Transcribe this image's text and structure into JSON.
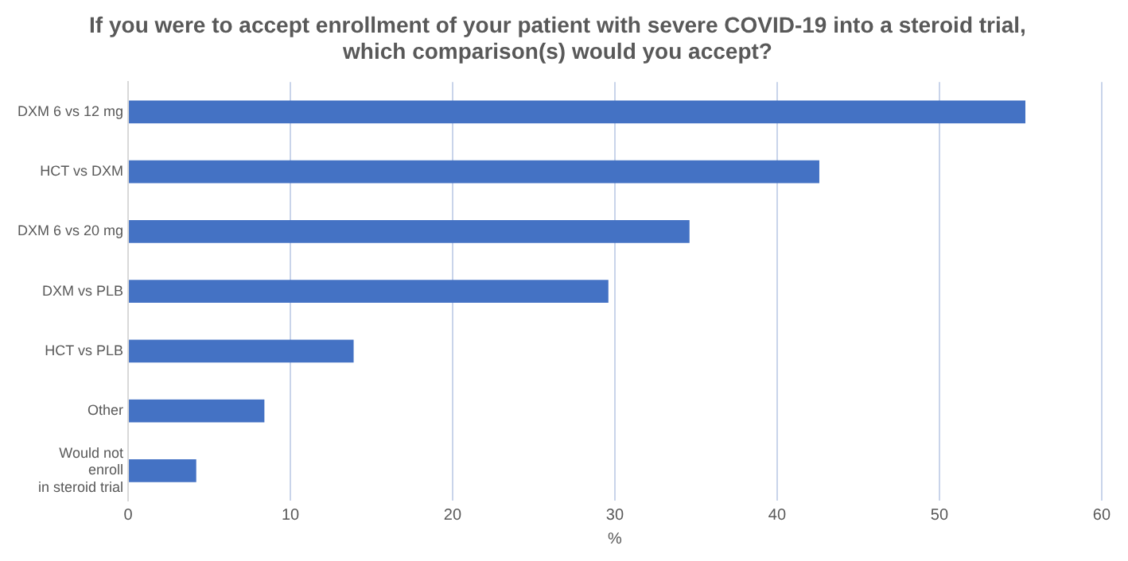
{
  "chart_data": {
    "type": "bar",
    "orientation": "horizontal",
    "title": "If you were to accept enrollment of your patient with severe COVID-19 into a steroid trial,\nwhich comparison(s) would you accept?",
    "xlabel": "%",
    "categories": [
      "DXM 6 vs 12 mg",
      "HCT vs DXM",
      "DXM 6 vs 20 mg",
      "DXM vs PLB",
      "HCT vs PLB",
      "Other",
      "Would not\nenroll\nin steroid trial"
    ],
    "values": [
      55.3,
      42.6,
      34.6,
      29.6,
      13.9,
      8.4,
      4.2
    ],
    "color": "#4472c4",
    "xlim": [
      0,
      60
    ],
    "xticks": [
      0,
      10,
      20,
      30,
      40,
      50,
      60
    ],
    "grid": "x",
    "legend": false
  }
}
